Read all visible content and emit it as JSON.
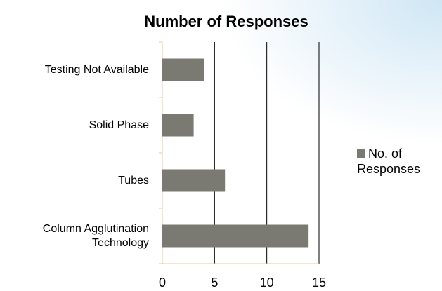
{
  "chart_data": {
    "type": "bar",
    "orientation": "horizontal",
    "title": "Number of Responses",
    "categories": [
      "Testing Not Available",
      "Solid Phase",
      "Tubes",
      "Column Agglutination Technology"
    ],
    "series": [
      {
        "name": "No. of Responses",
        "color": "#7a7a72",
        "values": [
          4,
          3,
          6,
          14
        ]
      }
    ],
    "xlim": [
      0,
      15
    ],
    "xticks": [
      0,
      5,
      10,
      15
    ],
    "grid": true,
    "legend": "right"
  }
}
